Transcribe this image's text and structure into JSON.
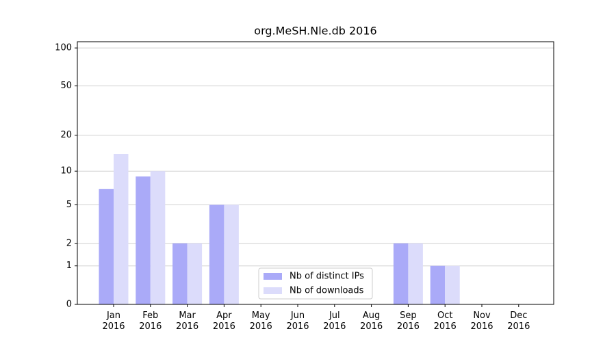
{
  "chart_data": {
    "type": "bar",
    "title": "org.MeSH.Nle.db 2016",
    "categories": [
      "Jan 2016",
      "Feb 2016",
      "Mar 2016",
      "Apr 2016",
      "May 2016",
      "Jun 2016",
      "Jul 2016",
      "Aug 2016",
      "Sep 2016",
      "Oct 2016",
      "Nov 2016",
      "Dec 2016"
    ],
    "series": [
      {
        "name": "Nb of distinct IPs",
        "color": "#aaaaf8",
        "values": [
          7,
          9,
          2,
          5,
          0,
          0,
          0,
          0,
          2,
          1,
          0,
          0
        ]
      },
      {
        "name": "Nb of downloads",
        "color": "#dcdcfb",
        "values": [
          14,
          10,
          2,
          5,
          0,
          0,
          0,
          0,
          2,
          1,
          0,
          0
        ]
      }
    ],
    "yscale": "log1p",
    "ylim": [
      0,
      112
    ],
    "yticks": [
      0,
      1,
      2,
      5,
      10,
      20,
      50,
      100
    ],
    "grid": true,
    "legend": "lower center"
  }
}
